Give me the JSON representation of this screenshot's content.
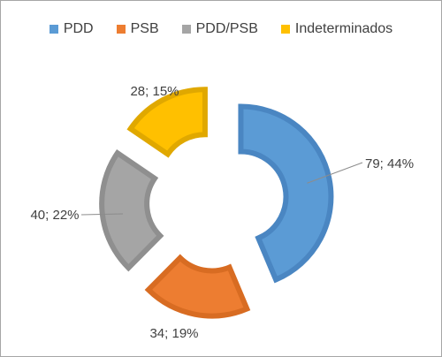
{
  "chart_data": {
    "type": "pie",
    "variant": "exploded-doughnut",
    "title": "",
    "legend_position": "top",
    "categories": [
      "PDD",
      "PSB",
      "PDD/PSB",
      "Indeterminados"
    ],
    "series": [
      {
        "values": [
          79,
          34,
          40,
          28
        ]
      }
    ],
    "percent_labels": [
      "44%",
      "19%",
      "22%",
      "15%"
    ],
    "data_labels": [
      "79; 44%",
      "34; 19%",
      "40; 22%",
      "28; 15%"
    ],
    "colors": [
      "#5b9bd5",
      "#ed7d31",
      "#a5a5a5",
      "#ffc000"
    ],
    "border_colors": [
      "#4a86c2",
      "#d86c22",
      "#8f8f8f",
      "#e0a800"
    ]
  }
}
